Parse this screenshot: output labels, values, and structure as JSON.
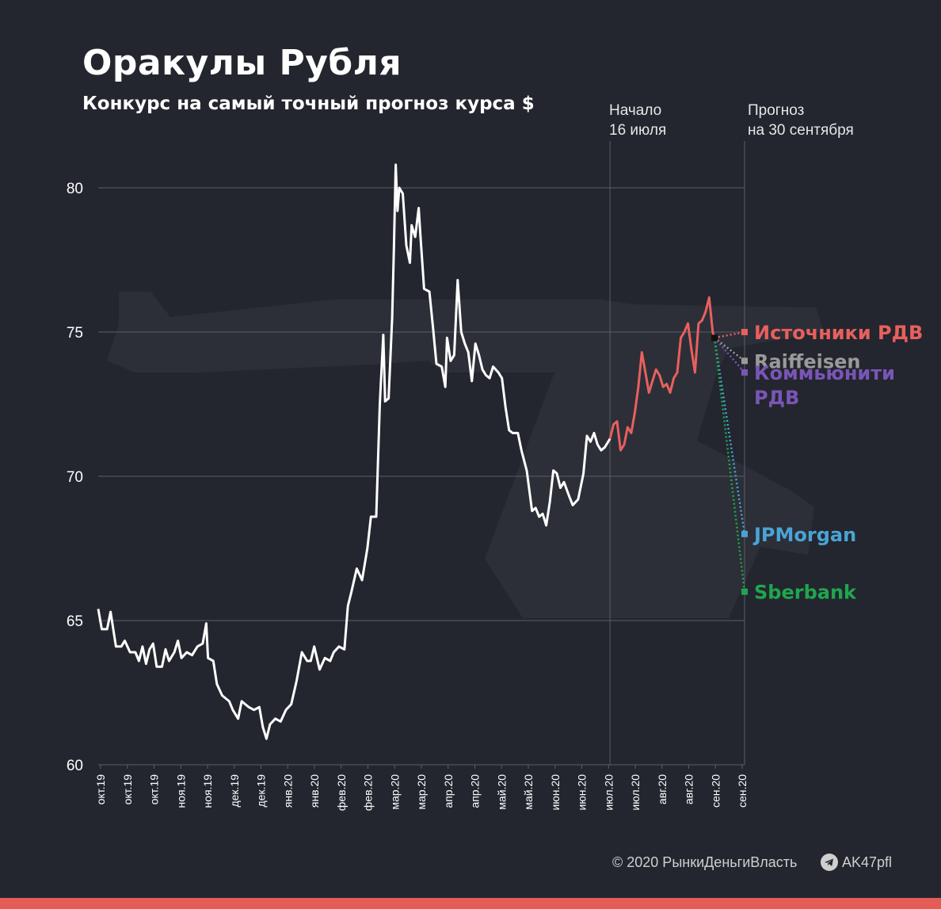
{
  "title": "Оракулы Рубля",
  "subtitle": "Конкурс на самый точный прогноз курса $",
  "start_note": {
    "line1": "Начало",
    "line2": "16 июля"
  },
  "forecast_note": {
    "line1": "Прогноз",
    "line2": "на 30 сентября"
  },
  "footer": {
    "copyright": "© 2020 РынкиДеньгиВласть",
    "channel": "AK47pfl"
  },
  "colors": {
    "background": "#23262e",
    "history_line": "#ffffff",
    "contest_line": "#e8605e",
    "grid": "#5a5e66",
    "bottom_bar": "#e45c58"
  },
  "icons": {
    "telegram": "telegram-icon",
    "background": "rifle-silhouette"
  },
  "chart_data": {
    "type": "line",
    "title": "Оракулы Рубля",
    "subtitle": "Конкурс на самый точный прогноз курса $",
    "xlabel": "",
    "ylabel": "",
    "ylim": [
      60,
      81
    ],
    "yticks": [
      60,
      65,
      70,
      75,
      80
    ],
    "grid": "horizontal",
    "x_tick_labels": [
      "окт.19",
      "окт.19",
      "окт.19",
      "ноя.19",
      "ноя.19",
      "дек.19",
      "дек.19",
      "янв.20",
      "янв.20",
      "фев.20",
      "фев.20",
      "мар.20",
      "мар.20",
      "апр.20",
      "апр.20",
      "май.20",
      "май.20",
      "июн.20",
      "июн.20",
      "июл.20",
      "июл.20",
      "авг.20",
      "авг.20",
      "сен.20",
      "сен.20"
    ],
    "x_range_dates": [
      "2019-10-01",
      "2020-09-30"
    ],
    "contest_start": "2020-07-16",
    "forecast_date": "2020-09-30",
    "series": [
      {
        "segment": "history",
        "color": "#ffffff",
        "points": [
          [
            "2019-10-01",
            65.4
          ],
          [
            "2019-10-03",
            64.7
          ],
          [
            "2019-10-06",
            64.7
          ],
          [
            "2019-10-08",
            65.3
          ],
          [
            "2019-10-11",
            64.1
          ],
          [
            "2019-10-14",
            64.1
          ],
          [
            "2019-10-16",
            64.3
          ],
          [
            "2019-10-19",
            63.9
          ],
          [
            "2019-10-22",
            63.9
          ],
          [
            "2019-10-24",
            63.6
          ],
          [
            "2019-10-26",
            64.1
          ],
          [
            "2019-10-28",
            63.5
          ],
          [
            "2019-10-30",
            64.0
          ],
          [
            "2019-11-01",
            64.2
          ],
          [
            "2019-11-03",
            63.4
          ],
          [
            "2019-11-06",
            63.4
          ],
          [
            "2019-11-08",
            64.0
          ],
          [
            "2019-11-10",
            63.6
          ],
          [
            "2019-11-13",
            63.9
          ],
          [
            "2019-11-15",
            64.3
          ],
          [
            "2019-11-17",
            63.7
          ],
          [
            "2019-11-20",
            63.9
          ],
          [
            "2019-11-23",
            63.8
          ],
          [
            "2019-11-26",
            64.1
          ],
          [
            "2019-11-29",
            64.2
          ],
          [
            "2019-12-01",
            64.9
          ],
          [
            "2019-12-02",
            63.7
          ],
          [
            "2019-12-05",
            63.6
          ],
          [
            "2019-12-07",
            62.8
          ],
          [
            "2019-12-10",
            62.4
          ],
          [
            "2019-12-14",
            62.2
          ],
          [
            "2019-12-16",
            61.9
          ],
          [
            "2019-12-19",
            61.6
          ],
          [
            "2019-12-21",
            62.2
          ],
          [
            "2019-12-25",
            62.0
          ],
          [
            "2019-12-28",
            61.9
          ],
          [
            "2019-12-31",
            62.0
          ],
          [
            "2020-01-02",
            61.3
          ],
          [
            "2020-01-04",
            60.9
          ],
          [
            "2020-01-06",
            61.4
          ],
          [
            "2020-01-09",
            61.6
          ],
          [
            "2020-01-12",
            61.5
          ],
          [
            "2020-01-15",
            61.9
          ],
          [
            "2020-01-18",
            62.1
          ],
          [
            "2020-01-21",
            62.9
          ],
          [
            "2020-01-24",
            63.9
          ],
          [
            "2020-01-27",
            63.6
          ],
          [
            "2020-01-29",
            63.6
          ],
          [
            "2020-01-31",
            64.1
          ],
          [
            "2020-02-03",
            63.3
          ],
          [
            "2020-02-06",
            63.7
          ],
          [
            "2020-02-09",
            63.6
          ],
          [
            "2020-02-11",
            63.9
          ],
          [
            "2020-02-14",
            64.1
          ],
          [
            "2020-02-17",
            64.0
          ],
          [
            "2020-02-19",
            65.5
          ],
          [
            "2020-02-21",
            66.0
          ],
          [
            "2020-02-24",
            66.8
          ],
          [
            "2020-02-27",
            66.4
          ],
          [
            "2020-03-01",
            67.5
          ],
          [
            "2020-03-03",
            68.6
          ],
          [
            "2020-03-06",
            68.6
          ],
          [
            "2020-03-08",
            72.5
          ],
          [
            "2020-03-10",
            74.9
          ],
          [
            "2020-03-11",
            72.6
          ],
          [
            "2020-03-13",
            72.7
          ],
          [
            "2020-03-15",
            75.5
          ],
          [
            "2020-03-16",
            77.9
          ],
          [
            "2020-03-17",
            80.8
          ],
          [
            "2020-03-18",
            79.2
          ],
          [
            "2020-03-19",
            80.0
          ],
          [
            "2020-03-21",
            79.8
          ],
          [
            "2020-03-23",
            78.0
          ],
          [
            "2020-03-25",
            77.4
          ],
          [
            "2020-03-26",
            78.7
          ],
          [
            "2020-03-28",
            78.3
          ],
          [
            "2020-03-30",
            79.3
          ],
          [
            "2020-03-31",
            78.3
          ],
          [
            "2020-04-02",
            76.5
          ],
          [
            "2020-04-05",
            76.4
          ],
          [
            "2020-04-07",
            75.2
          ],
          [
            "2020-04-09",
            73.9
          ],
          [
            "2020-04-12",
            73.8
          ],
          [
            "2020-04-14",
            73.1
          ],
          [
            "2020-04-15",
            74.8
          ],
          [
            "2020-04-17",
            74.0
          ],
          [
            "2020-04-19",
            74.2
          ],
          [
            "2020-04-21",
            76.8
          ],
          [
            "2020-04-23",
            75.0
          ],
          [
            "2020-04-25",
            74.6
          ],
          [
            "2020-04-27",
            74.3
          ],
          [
            "2020-04-29",
            73.3
          ],
          [
            "2020-05-01",
            74.6
          ],
          [
            "2020-05-03",
            74.2
          ],
          [
            "2020-05-05",
            73.7
          ],
          [
            "2020-05-07",
            73.5
          ],
          [
            "2020-05-09",
            73.4
          ],
          [
            "2020-05-11",
            73.8
          ],
          [
            "2020-05-14",
            73.6
          ],
          [
            "2020-05-16",
            73.4
          ],
          [
            "2020-05-18",
            72.4
          ],
          [
            "2020-05-20",
            71.6
          ],
          [
            "2020-05-22",
            71.5
          ],
          [
            "2020-05-25",
            71.5
          ],
          [
            "2020-05-27",
            70.9
          ],
          [
            "2020-05-30",
            70.2
          ],
          [
            "2020-06-02",
            68.8
          ],
          [
            "2020-06-04",
            68.9
          ],
          [
            "2020-06-06",
            68.6
          ],
          [
            "2020-06-08",
            68.7
          ],
          [
            "2020-06-10",
            68.3
          ],
          [
            "2020-06-12",
            69.1
          ],
          [
            "2020-06-14",
            70.2
          ],
          [
            "2020-06-16",
            70.1
          ],
          [
            "2020-06-18",
            69.6
          ],
          [
            "2020-06-20",
            69.8
          ],
          [
            "2020-06-23",
            69.3
          ],
          [
            "2020-06-25",
            69.0
          ],
          [
            "2020-06-28",
            69.2
          ],
          [
            "2020-07-01",
            70.1
          ],
          [
            "2020-07-03",
            71.4
          ],
          [
            "2020-07-05",
            71.2
          ],
          [
            "2020-07-07",
            71.5
          ],
          [
            "2020-07-09",
            71.1
          ],
          [
            "2020-07-11",
            70.9
          ],
          [
            "2020-07-13",
            71.0
          ],
          [
            "2020-07-16",
            71.3
          ]
        ]
      },
      {
        "segment": "contest",
        "color": "#e8605e",
        "points": [
          [
            "2020-07-16",
            71.3
          ],
          [
            "2020-07-18",
            71.8
          ],
          [
            "2020-07-20",
            71.9
          ],
          [
            "2020-07-22",
            70.9
          ],
          [
            "2020-07-24",
            71.1
          ],
          [
            "2020-07-26",
            71.7
          ],
          [
            "2020-07-28",
            71.5
          ],
          [
            "2020-07-30",
            72.2
          ],
          [
            "2020-08-01",
            73.1
          ],
          [
            "2020-08-03",
            74.3
          ],
          [
            "2020-08-05",
            73.6
          ],
          [
            "2020-08-07",
            72.9
          ],
          [
            "2020-08-09",
            73.3
          ],
          [
            "2020-08-11",
            73.7
          ],
          [
            "2020-08-13",
            73.5
          ],
          [
            "2020-08-15",
            73.1
          ],
          [
            "2020-08-17",
            73.2
          ],
          [
            "2020-08-19",
            72.9
          ],
          [
            "2020-08-21",
            73.4
          ],
          [
            "2020-08-23",
            73.6
          ],
          [
            "2020-08-25",
            74.8
          ],
          [
            "2020-08-27",
            75.0
          ],
          [
            "2020-08-29",
            75.3
          ],
          [
            "2020-08-31",
            74.4
          ],
          [
            "2020-09-02",
            73.6
          ],
          [
            "2020-09-04",
            75.3
          ],
          [
            "2020-09-06",
            75.4
          ],
          [
            "2020-09-08",
            75.7
          ],
          [
            "2020-09-10",
            76.2
          ],
          [
            "2020-09-12",
            75.0
          ],
          [
            "2020-09-13",
            74.8
          ]
        ]
      }
    ],
    "last_actual": {
      "date": "2020-09-13",
      "value": 74.8
    },
    "forecasts": [
      {
        "name": "Источники РДВ",
        "value": 75.0,
        "color": "#e8605e"
      },
      {
        "name": "Raiffeisen",
        "value": 74.0,
        "color": "#9a9a9a"
      },
      {
        "name": "Коммьюнити РДВ",
        "value": 73.6,
        "color": "#7a55b8",
        "label_lines": [
          "Коммьюнити",
          "РДВ"
        ]
      },
      {
        "name": "JPMorgan",
        "value": 68.0,
        "color": "#4aa3d6"
      },
      {
        "name": "Sberbank",
        "value": 66.0,
        "color": "#1fa64f"
      }
    ]
  }
}
